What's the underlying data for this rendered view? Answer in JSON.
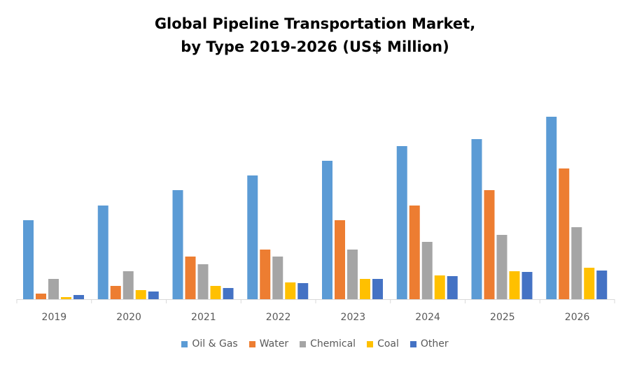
{
  "chart_data": {
    "type": "bar",
    "title_line1": "Global Pipeline Transportation Market,",
    "title_line2": "by Type 2019-2026 (US$ Million)",
    "xlabel": "",
    "ylabel": "",
    "ylim": [
      0,
      300
    ],
    "grid": false,
    "legend_position": "bottom",
    "categories": [
      "2019",
      "2020",
      "2021",
      "2022",
      "2023",
      "2024",
      "2025",
      "2026"
    ],
    "series": [
      {
        "name": "Oil & Gas",
        "color": "#5B9BD5",
        "values": [
          113,
          134,
          156,
          177,
          198,
          219,
          229,
          261
        ]
      },
      {
        "name": "Water",
        "color": "#ED7D31",
        "values": [
          8,
          19,
          61,
          71,
          113,
          134,
          156,
          187
        ]
      },
      {
        "name": "Chemical",
        "color": "#A5A5A5",
        "values": [
          29,
          40,
          50,
          61,
          71,
          82,
          92,
          103
        ]
      },
      {
        "name": "Coal",
        "color": "#FFC000",
        "values": [
          3,
          13,
          19,
          24,
          29,
          34,
          40,
          45
        ]
      },
      {
        "name": "Other",
        "color": "#4472C4",
        "values": [
          6,
          11,
          16,
          23,
          29,
          33,
          39,
          41
        ]
      }
    ]
  }
}
